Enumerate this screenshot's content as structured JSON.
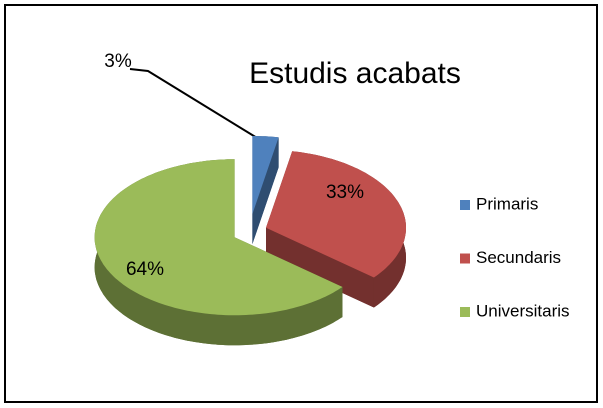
{
  "chart_data": {
    "type": "pie",
    "title": "Estudis acabats",
    "categories": [
      "Primaris",
      "Secundaris",
      "Universitaris"
    ],
    "values": [
      3,
      33,
      64
    ],
    "value_labels": [
      "3%",
      "33%",
      "64%"
    ],
    "colors": [
      "#4f81bd",
      "#c0504d",
      "#9bbb59"
    ],
    "legend": "right"
  }
}
